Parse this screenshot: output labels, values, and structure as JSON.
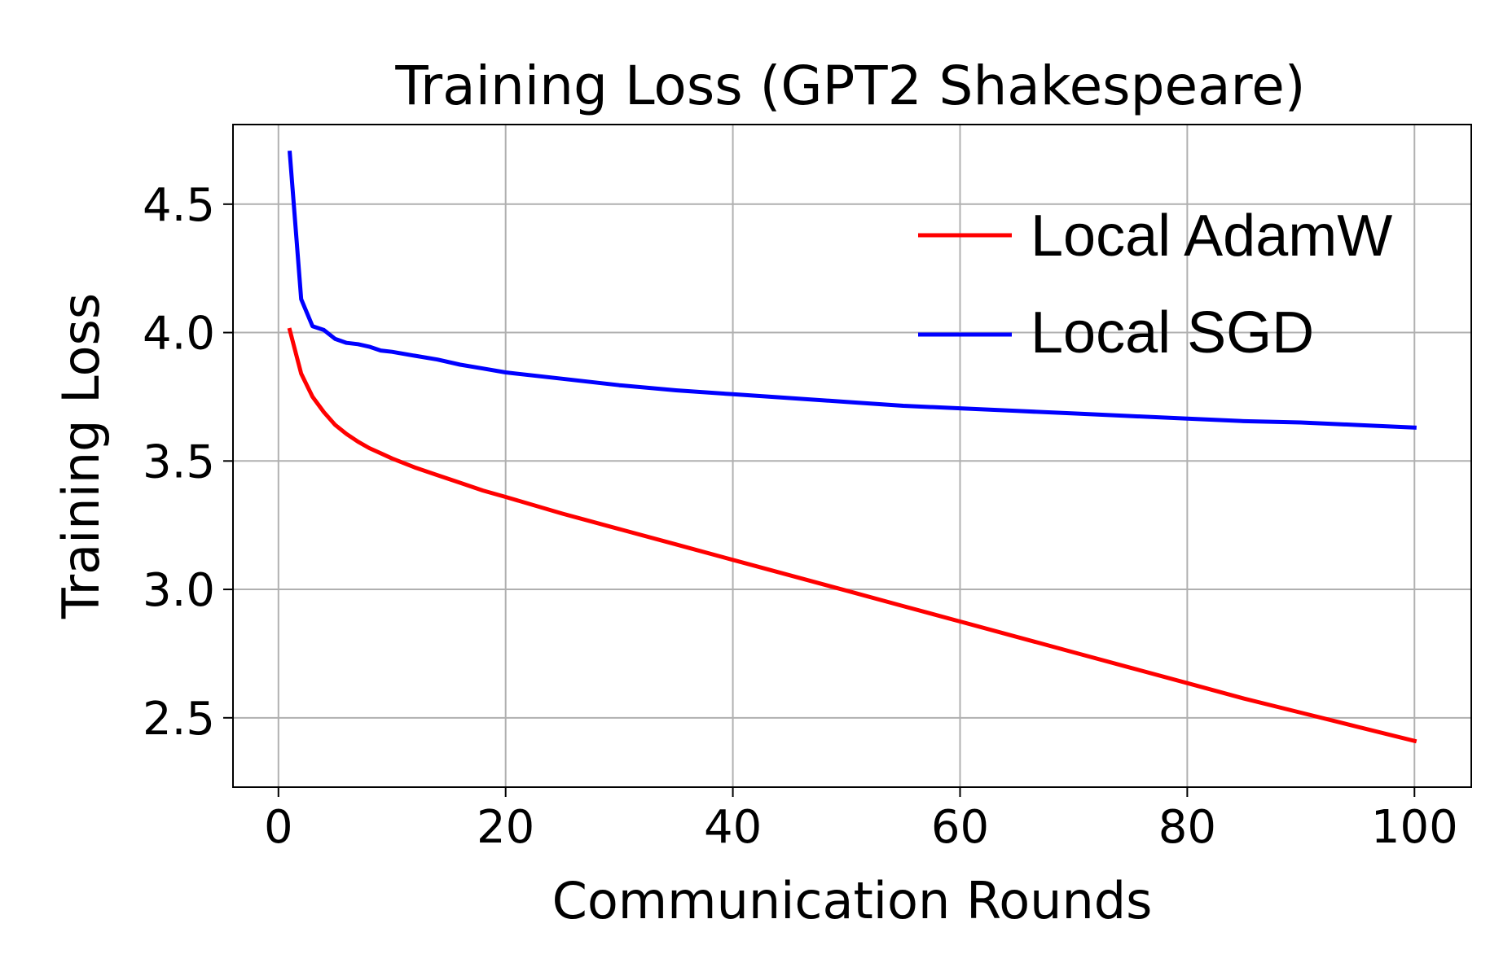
{
  "chart_data": {
    "type": "line",
    "title": "Training Loss (GPT2 Shakespeare)",
    "xlabel": "Communication Rounds",
    "ylabel": "Training Loss",
    "xlim": [
      -4,
      105
    ],
    "ylim": [
      2.23,
      4.81
    ],
    "xticks": [
      0,
      20,
      40,
      60,
      80,
      100
    ],
    "yticks": [
      2.5,
      3.0,
      3.5,
      4.0,
      4.5
    ],
    "xtick_labels": [
      "0",
      "20",
      "40",
      "60",
      "80",
      "100"
    ],
    "ytick_labels": [
      "2.5",
      "3.0",
      "3.5",
      "4.0",
      "4.5"
    ],
    "grid": true,
    "legend_position": "top-right",
    "series": [
      {
        "name": "Local AdamW",
        "color": "#ff0000",
        "x": [
          1,
          2,
          3,
          4,
          5,
          6,
          7,
          8,
          9,
          10,
          12,
          14,
          16,
          18,
          20,
          25,
          30,
          35,
          40,
          45,
          50,
          55,
          60,
          65,
          70,
          75,
          80,
          85,
          90,
          95,
          100
        ],
        "y": [
          4.01,
          3.84,
          3.75,
          3.69,
          3.64,
          3.605,
          3.575,
          3.55,
          3.53,
          3.51,
          3.475,
          3.445,
          3.415,
          3.385,
          3.36,
          3.295,
          3.235,
          3.175,
          3.115,
          3.055,
          2.995,
          2.935,
          2.875,
          2.815,
          2.755,
          2.695,
          2.635,
          2.575,
          2.52,
          2.465,
          2.41
        ]
      },
      {
        "name": "Local SGD",
        "color": "#0000ff",
        "x": [
          1,
          2,
          3,
          4,
          5,
          6,
          7,
          8,
          9,
          10,
          12,
          14,
          16,
          18,
          20,
          25,
          30,
          35,
          40,
          45,
          50,
          55,
          60,
          65,
          70,
          75,
          80,
          85,
          90,
          95,
          100
        ],
        "y": [
          4.7,
          4.13,
          4.025,
          4.01,
          3.975,
          3.96,
          3.955,
          3.945,
          3.93,
          3.925,
          3.91,
          3.895,
          3.875,
          3.86,
          3.845,
          3.82,
          3.795,
          3.775,
          3.76,
          3.745,
          3.73,
          3.715,
          3.705,
          3.695,
          3.685,
          3.675,
          3.665,
          3.655,
          3.65,
          3.64,
          3.63
        ]
      }
    ]
  }
}
